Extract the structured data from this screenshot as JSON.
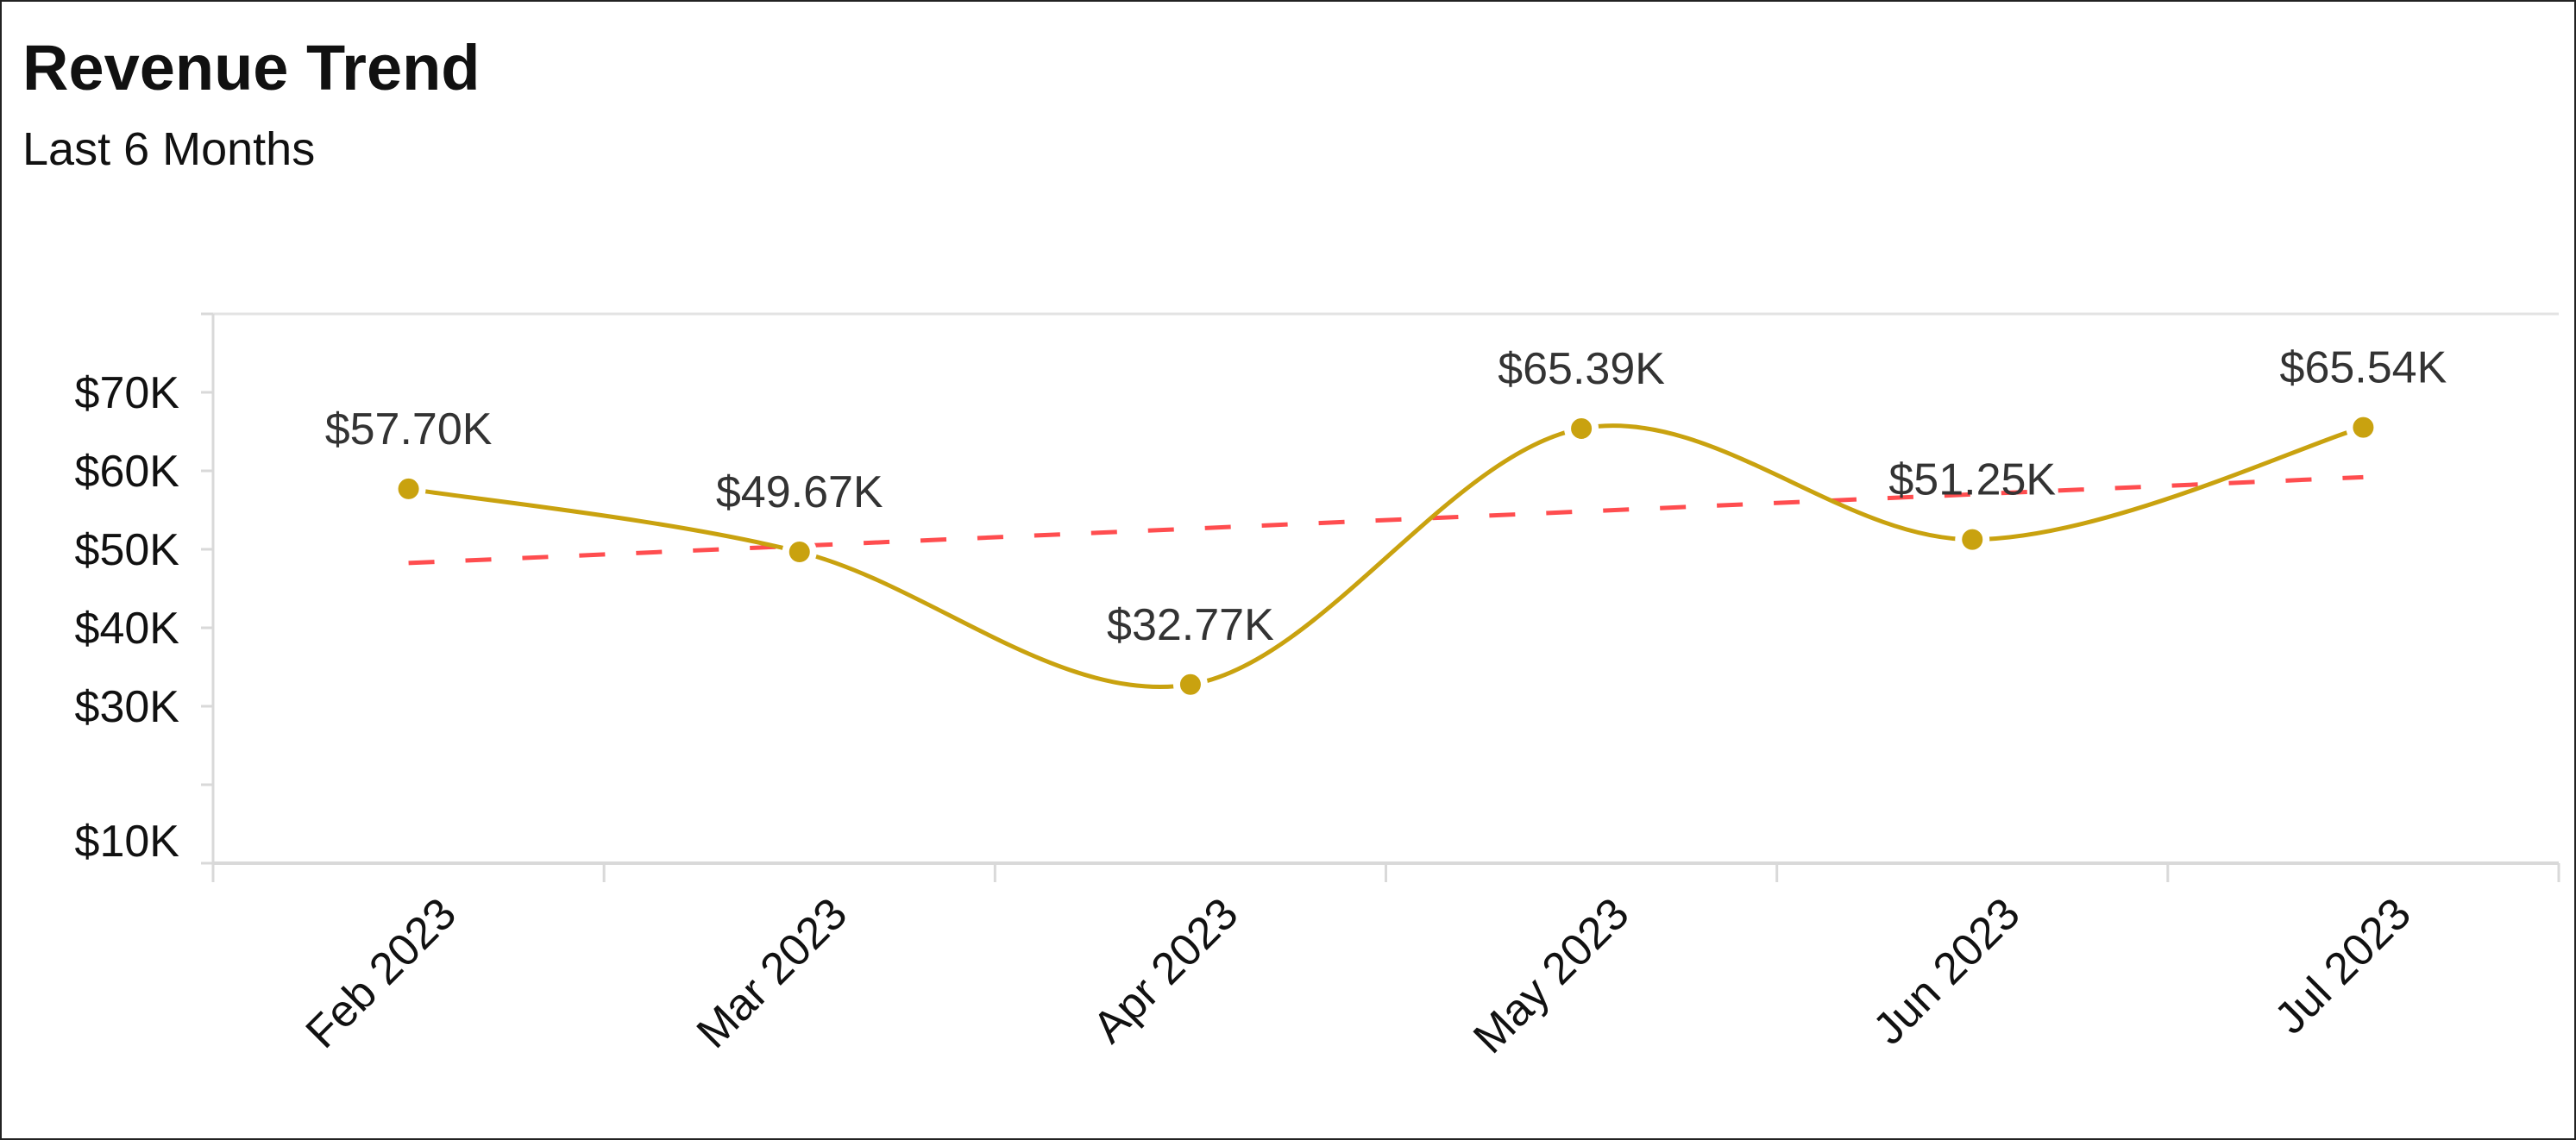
{
  "header": {
    "title": "Revenue Trend",
    "subtitle": "Last 6 Months"
  },
  "chart_data": {
    "type": "line",
    "title": "Revenue Trend",
    "subtitle": "Last 6 Months",
    "xlabel": "",
    "ylabel": "",
    "categories": [
      "Feb 2023",
      "Mar 2023",
      "Apr 2023",
      "May 2023",
      "Jun 2023",
      "Jul 2023"
    ],
    "series": [
      {
        "values": [
          57.7,
          49.67,
          32.77,
          65.39,
          51.25,
          65.54
        ],
        "labels": [
          "$57.70K",
          "$49.67K",
          "$32.77K",
          "$65.39K",
          "$51.25K",
          "$65.54K"
        ],
        "color": "#C9A20F",
        "smooth": true,
        "markers": true
      }
    ],
    "trendline": {
      "type": "linear",
      "style": "dashed",
      "color": "#FF4D4F",
      "start": 48.25,
      "end": 59.19
    },
    "ylim": [
      10,
      80
    ],
    "yticks": [
      10,
      20,
      30,
      40,
      50,
      60,
      70,
      80
    ],
    "ytick_labels": [
      {
        "value": 70,
        "label": "$70K"
      },
      {
        "value": 60,
        "label": "$60K"
      },
      {
        "value": 50,
        "label": "$50K"
      },
      {
        "value": 40,
        "label": "$40K"
      },
      {
        "value": 30,
        "label": "$30K"
      },
      {
        "value": 10,
        "label": "$10K"
      }
    ],
    "units": "thousands USD",
    "grid": false,
    "xtick_rotation": -45
  }
}
